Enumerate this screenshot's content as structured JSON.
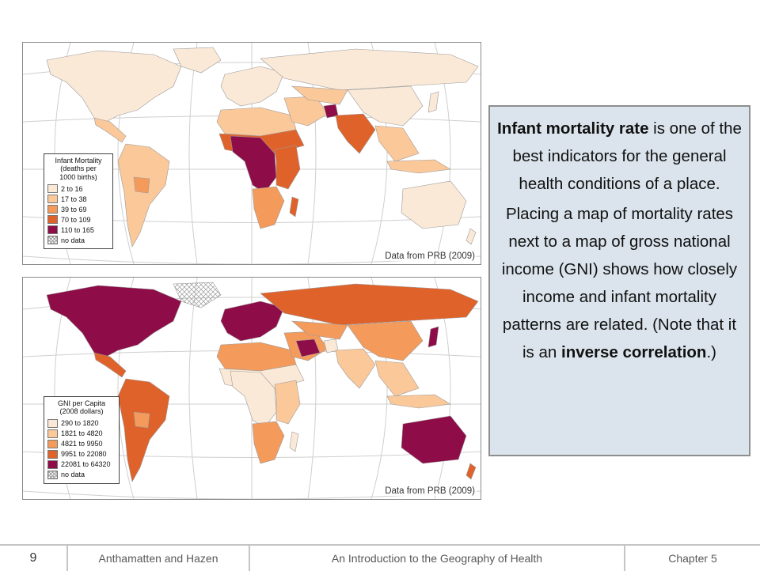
{
  "maps": [
    {
      "credit": "Data from PRB (2009)",
      "legend": {
        "title": "Infant Mortality",
        "subtitle_1": "(deaths per",
        "subtitle_2": "1000 births)",
        "items": [
          {
            "label": "2 to 16",
            "color": "#fbe9d7"
          },
          {
            "label": "17 to 38",
            "color": "#fbc89a"
          },
          {
            "label": "39 to 69",
            "color": "#f49b5c"
          },
          {
            "label": "70 to 109",
            "color": "#e0622b"
          },
          {
            "label": "110 to 165",
            "color": "#8e0c48"
          },
          {
            "label": "no data",
            "color": "hatch"
          }
        ]
      }
    },
    {
      "credit": "Data from PRB (2009)",
      "legend": {
        "title": "GNI per Capita",
        "subtitle_1": "(2008 dollars)",
        "subtitle_2": "",
        "items": [
          {
            "label": "290 to 1820",
            "color": "#fbe9d7"
          },
          {
            "label": "1821 to 4820",
            "color": "#fbc89a"
          },
          {
            "label": "4821 to 9950",
            "color": "#f49b5c"
          },
          {
            "label": "9951 to 22080",
            "color": "#e0622b"
          },
          {
            "label": "22081 to 64320",
            "color": "#8e0c48"
          },
          {
            "label": "no data",
            "color": "hatch"
          }
        ]
      }
    }
  ],
  "textbox": {
    "p1_bold": "Infant mortality rate",
    "p1_rest": " is one of the best indicators for the general health conditions of a place.",
    "p2_start": "Placing a map of mortality rates next to a map of gross national income (GNI) shows how closely income and infant mortality patterns are related. (Note that it is an ",
    "p2_bold": "inverse correlation",
    "p2_end": ".)"
  },
  "footer": {
    "page_number": "9",
    "authors": "Anthamatten and Hazen",
    "book_title": "An Introduction to the Geography of Health",
    "chapter": "Chapter 5"
  },
  "colors": {
    "ocean": "#ffffff",
    "graticule": "#c8c8c8",
    "textbox_bg": "#dbe4ec",
    "border": "#8e8e8e"
  }
}
